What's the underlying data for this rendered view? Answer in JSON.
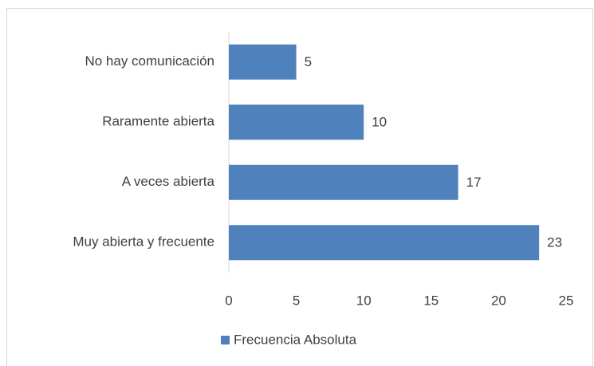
{
  "chart_data": {
    "type": "bar",
    "orientation": "horizontal",
    "categories": [
      "No hay comunicación",
      "Raramente abierta",
      "A veces abierta",
      "Muy abierta y frecuente"
    ],
    "series": [
      {
        "name": "Frecuencia Absoluta",
        "color": "#4f81bd",
        "values": [
          5,
          10,
          17,
          23
        ]
      }
    ],
    "xlim": [
      0,
      25
    ],
    "xticks": [
      0,
      5,
      10,
      15,
      20,
      25
    ],
    "grid": false,
    "legend": "bottom"
  }
}
